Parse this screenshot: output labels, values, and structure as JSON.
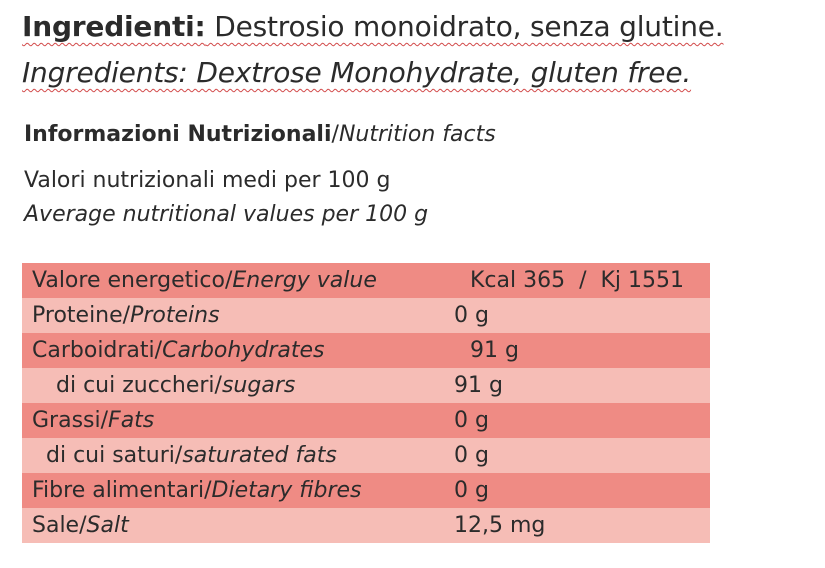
{
  "ingredients": {
    "it_label": "Ingredienti:",
    "it_text": " Destrosio monoidrato, senza glutine.",
    "en_text": "Ingredients: Dextrose Monohydrate, gluten free."
  },
  "nutrition": {
    "heading_it": "Informazioni Nutrizionali",
    "separator": "/",
    "heading_en": "Nutrition facts",
    "avg_it": "Valori nutrizionali medi per 100 g",
    "avg_en": "Average nutritional values per 100 g"
  },
  "table": {
    "colors": {
      "dark_row": "#ef8b84",
      "light_row": "#f6bdb6"
    },
    "rows": [
      {
        "it": "Valore energetico",
        "en": "Energy value",
        "value": "Kcal 365  /  Kj 1551"
      },
      {
        "it": "Proteine",
        "en": "Proteins",
        "value": "0 g"
      },
      {
        "it": "Carboidrati",
        "en": "Carbohydrates",
        "value": "91 g"
      },
      {
        "it": "di cui zuccheri",
        "en": "sugars",
        "value": "91 g"
      },
      {
        "it": "Grassi",
        "en": "Fats",
        "value": "0 g"
      },
      {
        "it": "di cui saturi",
        "en": "saturated fats",
        "value": "0 g"
      },
      {
        "it": "Fibre alimentari",
        "en": "Dietary fibres",
        "value": "0 g"
      },
      {
        "it": "Sale",
        "en": "Salt",
        "value": "12,5 mg"
      }
    ]
  }
}
